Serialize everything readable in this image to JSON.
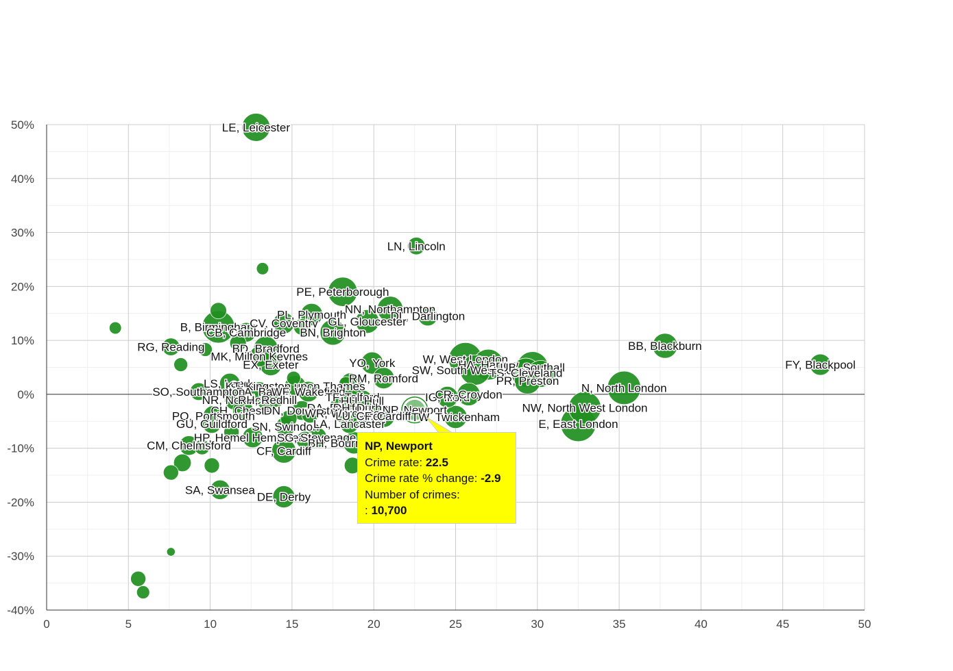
{
  "chart_data": {
    "type": "scatter",
    "title": "",
    "xlabel": "",
    "ylabel": "",
    "xlim": [
      0,
      50
    ],
    "ylim": [
      -40,
      50
    ],
    "x_ticks": [
      "0",
      "5",
      "10",
      "15",
      "20",
      "25",
      "30",
      "35",
      "40",
      "45",
      "50"
    ],
    "y_ticks": [
      "50%",
      "40%",
      "30%",
      "20%",
      "10%",
      "0%",
      "-10%",
      "-20%",
      "-30%",
      "-40%"
    ],
    "grid": true,
    "bubble_color": "#1f8f1f",
    "points": [
      {
        "label": "LE, Leicester",
        "x": 12.8,
        "y": 49.5,
        "crimes": 20000
      },
      {
        "label": "LN, Lincoln",
        "x": 22.6,
        "y": 27.5,
        "crimes": 6000
      },
      {
        "label": "",
        "x": 13.2,
        "y": 23.3,
        "crimes": 2000
      },
      {
        "label": "PE, Peterborough",
        "x": 18.1,
        "y": 19.0,
        "crimes": 22000
      },
      {
        "label": "NN, Northampton",
        "x": 21.0,
        "y": 15.8,
        "crimes": 16000
      },
      {
        "label": "DL, Darlington",
        "x": 23.3,
        "y": 14.5,
        "crimes": 8000
      },
      {
        "label": "PL, Plymouth",
        "x": 16.2,
        "y": 14.8,
        "crimes": 11000
      },
      {
        "label": "GL, Gloucester",
        "x": 19.6,
        "y": 13.5,
        "crimes": 13000
      },
      {
        "label": "",
        "x": 10.5,
        "y": 15.5,
        "crimes": 5000
      },
      {
        "label": "",
        "x": 4.2,
        "y": 12.3,
        "crimes": 2000
      },
      {
        "label": "B, Birmingham",
        "x": 10.5,
        "y": 12.5,
        "crimes": 28000
      },
      {
        "label": "CV, Coventry",
        "x": 14.5,
        "y": 13.2,
        "crimes": 10000
      },
      {
        "label": "",
        "x": 15.6,
        "y": 12.5,
        "crimes": 5000
      },
      {
        "label": "CB, Cambridge",
        "x": 12.2,
        "y": 11.5,
        "crimes": 8000
      },
      {
        "label": "BN, Brighton",
        "x": 17.5,
        "y": 11.5,
        "crimes": 16000
      },
      {
        "label": "RG, Reading",
        "x": 7.6,
        "y": 8.8,
        "crimes": 6000
      },
      {
        "label": "",
        "x": 9.7,
        "y": 8.3,
        "crimes": 3000
      },
      {
        "label": "BD, Bradford",
        "x": 13.4,
        "y": 8.5,
        "crimes": 14000
      },
      {
        "label": "",
        "x": 11.7,
        "y": 9.5,
        "crimes": 5000
      },
      {
        "label": "MK, Milton Keynes",
        "x": 13.0,
        "y": 7.0,
        "crimes": 9000
      },
      {
        "label": "",
        "x": 8.2,
        "y": 5.5,
        "crimes": 3000
      },
      {
        "label": "EX, Exeter",
        "x": 13.7,
        "y": 5.5,
        "crimes": 11000
      },
      {
        "label": "YO, York",
        "x": 19.9,
        "y": 5.8,
        "crimes": 11000
      },
      {
        "label": "RM, Romford",
        "x": 20.6,
        "y": 3.0,
        "crimes": 10000
      },
      {
        "label": "W, West London",
        "x": 25.6,
        "y": 6.5,
        "crimes": 30000
      },
      {
        "label": "HA, Harrow",
        "x": 27.0,
        "y": 5.5,
        "crimes": 25000
      },
      {
        "label": "SW, South West London",
        "x": 26.2,
        "y": 4.5,
        "crimes": 24000
      },
      {
        "label": "UB, Southall",
        "x": 29.7,
        "y": 5.0,
        "crimes": 26000
      },
      {
        "label": "TS, Cleveland",
        "x": 29.3,
        "y": 4.0,
        "crimes": 22000
      },
      {
        "label": "",
        "x": 30.2,
        "y": 3.8,
        "crimes": 18000
      },
      {
        "label": "PR, Preston",
        "x": 29.4,
        "y": 2.5,
        "crimes": 17000
      },
      {
        "label": "BB, Blackburn",
        "x": 37.8,
        "y": 9.0,
        "crimes": 15000
      },
      {
        "label": "FY, Blackpool",
        "x": 47.3,
        "y": 5.5,
        "crimes": 10000
      },
      {
        "label": "N, North London",
        "x": 35.3,
        "y": 1.2,
        "crimes": 30000
      },
      {
        "label": "LS, Leeds",
        "x": 11.2,
        "y": 2.0,
        "crimes": 9000
      },
      {
        "label": "KT, Kingston upon Thames",
        "x": 15.2,
        "y": 1.5,
        "crimes": 10000
      },
      {
        "label": "",
        "x": 15.1,
        "y": 3.0,
        "crimes": 3000
      },
      {
        "label": "BA, Bath",
        "x": 13.0,
        "y": 0.5,
        "crimes": 8000
      },
      {
        "label": "WF, Wakefield",
        "x": 16.0,
        "y": 0.5,
        "crimes": 9000
      },
      {
        "label": "",
        "x": 18.6,
        "y": 2.0,
        "crimes": 10000
      },
      {
        "label": "",
        "x": 18.3,
        "y": 2.0,
        "crimes": 3000
      },
      {
        "label": "SO, Southampton",
        "x": 9.3,
        "y": 0.5,
        "crimes": 6000
      },
      {
        "label": "",
        "x": 11.3,
        "y": 0.0,
        "crimes": 4000
      },
      {
        "label": "NR, Norwich",
        "x": 11.5,
        "y": -1.0,
        "crimes": 9000
      },
      {
        "label": "RH, Redhill",
        "x": 13.5,
        "y": -1.0,
        "crimes": 10000
      },
      {
        "label": "",
        "x": 14.0,
        "y": -0.5,
        "crimes": 9000
      },
      {
        "label": "TF, Telford",
        "x": 18.7,
        "y": -0.5,
        "crimes": 9000
      },
      {
        "label": "HU, Hull",
        "x": 19.3,
        "y": -1.2,
        "crimes": 10000
      },
      {
        "label": "IG, Ilford",
        "x": 24.5,
        "y": -0.5,
        "crimes": 10000
      },
      {
        "label": "CR, Croydon",
        "x": 25.8,
        "y": 0.0,
        "crimes": 12000
      },
      {
        "label": "DA, Dartford",
        "x": 17.9,
        "y": -2.5,
        "crimes": 9000
      },
      {
        "label": "DH, Durham",
        "x": 19.5,
        "y": -2.5,
        "crimes": 10000
      },
      {
        "label": "CH, Chester",
        "x": 12.0,
        "y": -3.0,
        "crimes": 9000
      },
      {
        "label": "DN, Doncaster",
        "x": 15.6,
        "y": -3.0,
        "crimes": 8000
      },
      {
        "label": "WR, Worcester",
        "x": 18.2,
        "y": -3.5,
        "crimes": 9000
      },
      {
        "label": "NP, Newport",
        "x": 22.5,
        "y": -2.9,
        "crimes": 10700
      },
      {
        "label": "PO, Portsmouth",
        "x": 10.2,
        "y": -4.0,
        "crimes": 9000
      },
      {
        "label": "",
        "x": 14.8,
        "y": -4.5,
        "crimes": 5000
      },
      {
        "label": "",
        "x": 16.1,
        "y": -3.8,
        "crimes": 5000
      },
      {
        "label": "LU, Luton",
        "x": 19.2,
        "y": -4.0,
        "crimes": 9000
      },
      {
        "label": "CF, Cardiff",
        "x": 20.6,
        "y": -4.0,
        "crimes": 12000
      },
      {
        "label": "TW, Twickenham",
        "x": 25.0,
        "y": -4.2,
        "crimes": 12000
      },
      {
        "label": "NW, North West London",
        "x": 32.9,
        "y": -2.5,
        "crimes": 28000
      },
      {
        "label": "E, East London",
        "x": 32.5,
        "y": -5.5,
        "crimes": 34000
      },
      {
        "label": "GU, Guildford",
        "x": 10.1,
        "y": -5.5,
        "crimes": 7000
      },
      {
        "label": "SN, Swindon",
        "x": 14.6,
        "y": -6.0,
        "crimes": 8000
      },
      {
        "label": "LA, Lancaster",
        "x": 18.5,
        "y": -5.5,
        "crimes": 7000
      },
      {
        "label": "",
        "x": 11.3,
        "y": -7.0,
        "crimes": 4000
      },
      {
        "label": "HP, Hemel Hempstead",
        "x": 12.6,
        "y": -8.0,
        "crimes": 9000
      },
      {
        "label": "SG, Stevenage",
        "x": 16.5,
        "y": -8.0,
        "crimes": 9000
      },
      {
        "label": "BH, Bournemouth",
        "x": 18.8,
        "y": -9.0,
        "crimes": 11000
      },
      {
        "label": "",
        "x": 15.8,
        "y": -8.5,
        "crimes": 6000
      },
      {
        "label": "CM, Chelmsford",
        "x": 8.7,
        "y": -9.5,
        "crimes": 8000
      },
      {
        "label": "CF, Cardiff",
        "x": 14.5,
        "y": -10.5,
        "crimes": 14000
      },
      {
        "label": "",
        "x": 9.5,
        "y": -9.8,
        "crimes": 4000
      },
      {
        "label": "",
        "x": 8.3,
        "y": -12.7,
        "crimes": 6000
      },
      {
        "label": "",
        "x": 10.1,
        "y": -13.2,
        "crimes": 4000
      },
      {
        "label": "",
        "x": 18.7,
        "y": -13.2,
        "crimes": 5000
      },
      {
        "label": "",
        "x": 7.6,
        "y": -14.5,
        "crimes": 4000
      },
      {
        "label": "SA, Swansea",
        "x": 10.6,
        "y": -17.7,
        "crimes": 8000
      },
      {
        "label": "DE, Derby",
        "x": 14.5,
        "y": -19.0,
        "crimes": 11000
      },
      {
        "label": "",
        "x": 7.6,
        "y": -29.2,
        "crimes": 500
      },
      {
        "label": "",
        "x": 5.6,
        "y": -34.2,
        "crimes": 4000
      },
      {
        "label": "",
        "x": 5.9,
        "y": -36.7,
        "crimes": 2500
      }
    ]
  },
  "tooltip": {
    "title": "NP, Newport",
    "rate_label": "Crime rate:",
    "rate_value": "22.5",
    "change_label": "Crime rate % change:",
    "change_value": "-2.9",
    "crimes_label": "Number of crimes:",
    "crimes_prefix": ":",
    "crimes_value": "10,700"
  }
}
